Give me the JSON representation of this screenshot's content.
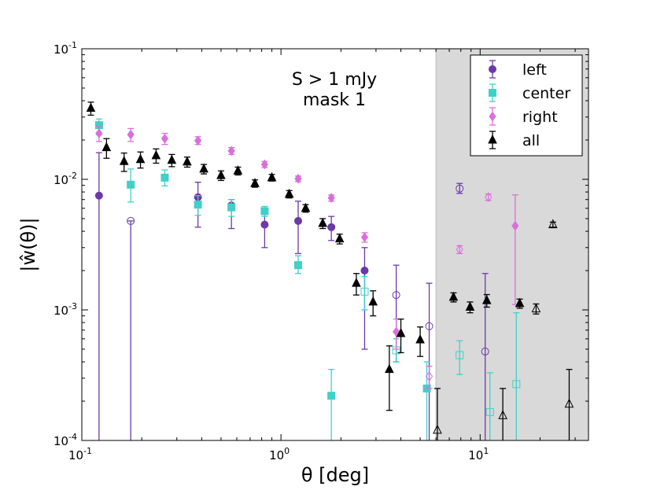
{
  "chart_data": {
    "type": "scatter",
    "xscale": "log",
    "yscale": "log",
    "xlim": [
      0.1,
      35
    ],
    "ylim": [
      0.0001,
      0.1
    ],
    "xlabel": "θ [deg]",
    "ylabel": "|ŵ(θ)|",
    "xticks": [
      {
        "base": "10",
        "exp": "-1"
      },
      {
        "base": "10",
        "exp": "0"
      },
      {
        "base": "10",
        "exp": "1"
      }
    ],
    "yticks": [
      {
        "base": "10",
        "exp": "-4"
      },
      {
        "base": "10",
        "exp": "-3"
      },
      {
        "base": "10",
        "exp": "-2"
      },
      {
        "base": "10",
        "exp": "-1"
      }
    ],
    "annotation": [
      "S > 1 mJy",
      "mask 1"
    ],
    "shaded_region": {
      "x_from": 6.0,
      "x_to": 35,
      "color": "#d9d9d9"
    },
    "legend_position": "top-right",
    "series": [
      {
        "name": "left",
        "marker": "circle",
        "color": "#6b3aa8",
        "points": [
          {
            "x": 0.122,
            "y": 0.0075,
            "ylo": 1e-07,
            "yhi": 0.016,
            "open": false
          },
          {
            "x": 0.176,
            "y": 0.0048,
            "ylo": 1e-07,
            "yhi": 0.0048,
            "open": true
          },
          {
            "x": 0.383,
            "y": 0.0073,
            "ylo": 0.0043,
            "yhi": 0.0095,
            "open": false
          },
          {
            "x": 0.564,
            "y": 0.0063,
            "ylo": 0.0042,
            "yhi": 0.007,
            "open": false
          },
          {
            "x": 0.828,
            "y": 0.0045,
            "ylo": 0.003,
            "yhi": 0.0055,
            "open": false
          },
          {
            "x": 1.22,
            "y": 0.0048,
            "ylo": 0.0027,
            "yhi": 0.0068,
            "open": false
          },
          {
            "x": 1.79,
            "y": 0.0043,
            "ylo": 0.0034,
            "yhi": 0.0052,
            "open": false
          },
          {
            "x": 2.63,
            "y": 0.002,
            "ylo": 0.0005,
            "yhi": 0.003,
            "open": false
          },
          {
            "x": 3.79,
            "y": 0.0013,
            "ylo": 0.0004,
            "yhi": 0.0022,
            "open": true
          },
          {
            "x": 5.55,
            "y": 0.00075,
            "ylo": 1e-07,
            "yhi": 0.0016,
            "open": true
          },
          {
            "x": 7.89,
            "y": 0.0085,
            "ylo": 0.0078,
            "yhi": 0.0093,
            "open": true
          },
          {
            "x": 10.6,
            "y": 0.00048,
            "ylo": 1e-07,
            "yhi": 0.0019,
            "open": true
          }
        ]
      },
      {
        "name": "center",
        "marker": "square",
        "color": "#40d0c8",
        "points": [
          {
            "x": 0.122,
            "y": 0.026,
            "ylo": 0.022,
            "yhi": 0.029,
            "open": false
          },
          {
            "x": 0.176,
            "y": 0.0091,
            "ylo": 0.0067,
            "yhi": 0.012,
            "open": false
          },
          {
            "x": 0.261,
            "y": 0.0103,
            "ylo": 0.0089,
            "yhi": 0.0118,
            "open": false
          },
          {
            "x": 0.383,
            "y": 0.0064,
            "ylo": 0.0053,
            "yhi": 0.0075,
            "open": false
          },
          {
            "x": 0.564,
            "y": 0.0061,
            "ylo": 0.0052,
            "yhi": 0.007,
            "open": false
          },
          {
            "x": 0.828,
            "y": 0.0057,
            "ylo": 0.0052,
            "yhi": 0.0062,
            "open": false
          },
          {
            "x": 1.22,
            "y": 0.0022,
            "ylo": 0.0019,
            "yhi": 0.0026,
            "open": false
          },
          {
            "x": 1.79,
            "y": 0.00022,
            "ylo": 5e-05,
            "yhi": 0.00035,
            "open": false
          },
          {
            "x": 2.63,
            "y": 0.00138,
            "ylo": 0.001,
            "yhi": 0.0018,
            "open": true
          },
          {
            "x": 3.79,
            "y": 0.00049,
            "ylo": 0.0004,
            "yhi": 0.0006,
            "open": true
          },
          {
            "x": 5.4,
            "y": 0.00025,
            "ylo": 1e-07,
            "yhi": 0.0004,
            "open": false
          },
          {
            "x": 7.89,
            "y": 0.00045,
            "ylo": 0.00032,
            "yhi": 0.00058,
            "open": true
          },
          {
            "x": 11.2,
            "y": 0.000165,
            "ylo": 1e-07,
            "yhi": 0.00033,
            "open": true
          },
          {
            "x": 15.2,
            "y": 0.00027,
            "ylo": 1e-07,
            "yhi": 0.00095,
            "open": true
          }
        ]
      },
      {
        "name": "right",
        "marker": "diamond",
        "color": "#d970d9",
        "points": [
          {
            "x": 0.122,
            "y": 0.0225,
            "ylo": 0.0195,
            "yhi": 0.0255,
            "open": false
          },
          {
            "x": 0.176,
            "y": 0.022,
            "ylo": 0.0195,
            "yhi": 0.0245,
            "open": false
          },
          {
            "x": 0.261,
            "y": 0.0205,
            "ylo": 0.0185,
            "yhi": 0.0225,
            "open": false
          },
          {
            "x": 0.383,
            "y": 0.0198,
            "ylo": 0.0185,
            "yhi": 0.0212,
            "open": false
          },
          {
            "x": 0.564,
            "y": 0.0165,
            "ylo": 0.0155,
            "yhi": 0.0175,
            "open": false
          },
          {
            "x": 0.828,
            "y": 0.013,
            "ylo": 0.0123,
            "yhi": 0.0137,
            "open": false
          },
          {
            "x": 1.22,
            "y": 0.0101,
            "ylo": 0.0096,
            "yhi": 0.0106,
            "open": false
          },
          {
            "x": 1.79,
            "y": 0.0072,
            "ylo": 0.0068,
            "yhi": 0.0076,
            "open": false
          },
          {
            "x": 2.63,
            "y": 0.0036,
            "ylo": 0.0033,
            "yhi": 0.0039,
            "open": false
          },
          {
            "x": 3.79,
            "y": 0.00068,
            "ylo": 0.0005,
            "yhi": 0.00085,
            "open": false
          },
          {
            "x": 5.55,
            "y": 0.00031,
            "ylo": 0.00025,
            "yhi": 0.00037,
            "open": true
          },
          {
            "x": 7.89,
            "y": 0.0029,
            "ylo": 0.0027,
            "yhi": 0.0031,
            "open": true
          },
          {
            "x": 11.0,
            "y": 0.0073,
            "ylo": 0.0069,
            "yhi": 0.0077,
            "open": true
          },
          {
            "x": 15.0,
            "y": 0.0044,
            "ylo": 0.0011,
            "yhi": 0.0076,
            "open": false
          }
        ]
      },
      {
        "name": "all",
        "marker": "triangle",
        "color": "#000000",
        "points": [
          {
            "x": 0.111,
            "y": 0.035,
            "ylo": 0.031,
            "yhi": 0.039,
            "open": false
          },
          {
            "x": 0.133,
            "y": 0.0175,
            "ylo": 0.0145,
            "yhi": 0.0205,
            "open": false
          },
          {
            "x": 0.163,
            "y": 0.0137,
            "ylo": 0.0115,
            "yhi": 0.0159,
            "open": false
          },
          {
            "x": 0.197,
            "y": 0.0142,
            "ylo": 0.0122,
            "yhi": 0.0162,
            "open": false
          },
          {
            "x": 0.236,
            "y": 0.0152,
            "ylo": 0.0133,
            "yhi": 0.0171,
            "open": false
          },
          {
            "x": 0.283,
            "y": 0.014,
            "ylo": 0.0125,
            "yhi": 0.0155,
            "open": false
          },
          {
            "x": 0.338,
            "y": 0.0136,
            "ylo": 0.0124,
            "yhi": 0.0148,
            "open": false
          },
          {
            "x": 0.41,
            "y": 0.012,
            "ylo": 0.011,
            "yhi": 0.013,
            "open": false
          },
          {
            "x": 0.5,
            "y": 0.0107,
            "ylo": 0.0098,
            "yhi": 0.0116,
            "open": false
          },
          {
            "x": 0.608,
            "y": 0.0116,
            "ylo": 0.0108,
            "yhi": 0.0124,
            "open": false
          },
          {
            "x": 0.74,
            "y": 0.0093,
            "ylo": 0.0087,
            "yhi": 0.0099,
            "open": false
          },
          {
            "x": 0.9,
            "y": 0.0103,
            "ylo": 0.0097,
            "yhi": 0.0109,
            "open": false
          },
          {
            "x": 1.1,
            "y": 0.0077,
            "ylo": 0.0072,
            "yhi": 0.0082,
            "open": false
          },
          {
            "x": 1.33,
            "y": 0.006,
            "ylo": 0.0056,
            "yhi": 0.0064,
            "open": false
          },
          {
            "x": 1.62,
            "y": 0.0046,
            "ylo": 0.0042,
            "yhi": 0.005,
            "open": false
          },
          {
            "x": 1.97,
            "y": 0.0035,
            "ylo": 0.0032,
            "yhi": 0.0038,
            "open": false
          },
          {
            "x": 2.39,
            "y": 0.0016,
            "ylo": 0.0013,
            "yhi": 0.0019,
            "open": false
          },
          {
            "x": 2.9,
            "y": 0.00115,
            "ylo": 0.0009,
            "yhi": 0.0014,
            "open": false
          },
          {
            "x": 3.5,
            "y": 0.00035,
            "ylo": 0.00017,
            "yhi": 0.00053,
            "open": false
          },
          {
            "x": 4.0,
            "y": 0.00066,
            "ylo": 0.00047,
            "yhi": 0.00085,
            "open": false
          },
          {
            "x": 5.0,
            "y": 0.00059,
            "ylo": 0.00044,
            "yhi": 0.00074,
            "open": false
          },
          {
            "x": 6.1,
            "y": 0.00012,
            "ylo": 1e-07,
            "yhi": 0.00025,
            "open": true
          },
          {
            "x": 7.35,
            "y": 0.00125,
            "ylo": 0.00115,
            "yhi": 0.00135,
            "open": false
          },
          {
            "x": 8.9,
            "y": 0.00105,
            "ylo": 0.00095,
            "yhi": 0.00115,
            "open": false
          },
          {
            "x": 10.8,
            "y": 0.00118,
            "ylo": 0.00105,
            "yhi": 0.00131,
            "open": false
          },
          {
            "x": 13.0,
            "y": 0.000155,
            "ylo": 1e-07,
            "yhi": 0.00025,
            "open": true
          },
          {
            "x": 15.8,
            "y": 0.00112,
            "ylo": 0.00103,
            "yhi": 0.00121,
            "open": false
          },
          {
            "x": 19.1,
            "y": 0.00102,
            "ylo": 0.00093,
            "yhi": 0.00111,
            "open": true
          },
          {
            "x": 23.2,
            "y": 0.0045,
            "ylo": 0.0043,
            "yhi": 0.0047,
            "open": true
          },
          {
            "x": 28.0,
            "y": 0.00019,
            "ylo": 5e-05,
            "yhi": 0.00035,
            "open": true
          }
        ]
      }
    ]
  }
}
